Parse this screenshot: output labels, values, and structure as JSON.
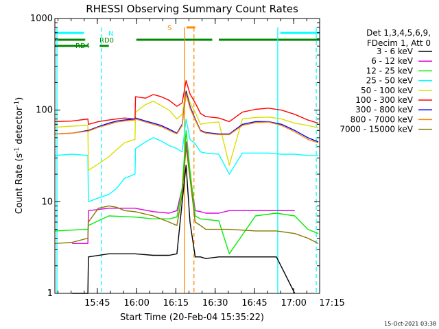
{
  "chart_data": {
    "type": "line",
    "title": "RHESSI Observing Summary Count Rates",
    "xlabel": "Start Time (20-Feb-04 15:35:22)",
    "ylabel": "Count Rate (s",
    "ylabel_sup1": "-1",
    "ylabel_mid": " detector",
    "ylabel_sup2": "-1",
    "ylabel_end": ")",
    "y_scale": "log",
    "ylim": [
      1,
      1000
    ],
    "xlim_minutes": [
      -6.6,
      94.5
    ],
    "x_ticks": [
      {
        "minute": 9.6,
        "label": "15:45"
      },
      {
        "minute": 24.6,
        "label": "16:00"
      },
      {
        "minute": 39.6,
        "label": "16:15"
      },
      {
        "minute": 54.6,
        "label": "16:30"
      },
      {
        "minute": 69.6,
        "label": "16:45"
      },
      {
        "minute": 84.6,
        "label": "17:00"
      },
      {
        "minute": 99.6,
        "label": "17:15"
      }
    ],
    "y_ticks": [
      {
        "value": 1,
        "label": "1"
      },
      {
        "value": 10,
        "label": "10"
      },
      {
        "value": 100,
        "label": "100"
      },
      {
        "value": 1000,
        "label": "1000"
      }
    ],
    "legend": {
      "placement": "right",
      "header": [
        "Det 1,3,4,5,6,9,",
        "FDecim 1, Att 0"
      ]
    },
    "series": [
      {
        "name": "3 - 6 keV",
        "color": "#000000",
        "x": [
          0,
          6,
          6.2,
          14,
          24,
          31,
          37,
          40,
          42,
          43.5,
          45,
          47,
          49,
          51,
          56,
          60,
          70,
          78,
          85
        ],
        "y": [
          1,
          1,
          2.5,
          2.7,
          2.7,
          2.6,
          2.6,
          2.7,
          10,
          25,
          6,
          2.5,
          2.5,
          2.4,
          2.5,
          2.5,
          2.5,
          2.5,
          1
        ]
      },
      {
        "name": "6 - 12 keV",
        "color": "#dd00dd",
        "x": [
          0,
          6,
          6.2,
          14,
          24,
          31,
          37,
          40,
          42,
          43.5,
          45,
          47,
          49,
          51,
          56,
          60,
          70,
          78,
          85
        ],
        "y": [
          3.5,
          3.5,
          8,
          8.5,
          8.5,
          7.8,
          7.5,
          8,
          14,
          45,
          20,
          8,
          7.8,
          7.5,
          7.5,
          8,
          8,
          8,
          8
        ]
      },
      {
        "name": "12 - 25 keV",
        "color": "#00ee00",
        "x": [
          -6.5,
          6,
          6.2,
          14,
          24,
          31,
          37,
          40,
          42,
          43.5,
          45,
          47,
          49,
          51,
          56,
          60,
          70,
          78,
          85,
          90,
          94
        ],
        "y": [
          4.8,
          5,
          5.5,
          7,
          6.8,
          6.5,
          6.5,
          6.8,
          14,
          60,
          22,
          7,
          6.5,
          6.4,
          6.2,
          2.7,
          7,
          7.5,
          7,
          5,
          4.5
        ]
      },
      {
        "name": "25 - 50 keV",
        "color": "#00ffff",
        "x": [
          -6.5,
          0,
          6,
          6.2,
          10,
          14,
          17,
          20,
          24,
          24.2,
          28,
          31,
          34,
          37,
          40,
          42,
          43.5,
          45,
          47,
          49,
          51,
          56,
          60,
          65,
          70,
          75,
          80,
          85,
          90,
          94
        ],
        "y": [
          32,
          33,
          32,
          10,
          11,
          12,
          14,
          18,
          20,
          38,
          45,
          50,
          46,
          41,
          38,
          35,
          80,
          48,
          43,
          35,
          34,
          33,
          20,
          34,
          34,
          34,
          33,
          33,
          32,
          32
        ]
      },
      {
        "name": "50 - 100 keV",
        "color": "#dddd00",
        "x": [
          -6.5,
          0,
          6,
          6.2,
          10,
          14,
          17,
          20,
          24,
          24.2,
          28,
          31,
          34,
          37,
          40,
          42,
          43.5,
          45,
          47,
          49,
          51,
          56,
          60,
          65,
          70,
          75,
          80,
          85,
          90,
          94
        ],
        "y": [
          65,
          67,
          68,
          22,
          26,
          31,
          37,
          44,
          48,
          95,
          115,
          125,
          112,
          100,
          80,
          90,
          165,
          120,
          95,
          70,
          72,
          74,
          25,
          80,
          83,
          84,
          80,
          72,
          68,
          64
        ]
      },
      {
        "name": "100 - 300 keV",
        "color": "#ff0000",
        "x": [
          -6.5,
          0,
          6,
          6.2,
          10,
          14,
          17,
          20,
          24,
          24.2,
          28,
          31,
          34,
          37,
          40,
          42,
          43.5,
          45,
          47,
          49,
          51,
          56,
          60,
          65,
          70,
          75,
          80,
          85,
          90,
          94
        ],
        "y": [
          75,
          76,
          80,
          70,
          75,
          78,
          80,
          82,
          80,
          140,
          135,
          148,
          140,
          128,
          110,
          120,
          210,
          150,
          120,
          92,
          85,
          82,
          75,
          95,
          102,
          105,
          100,
          90,
          78,
          72
        ]
      },
      {
        "name": "300 - 800 keV",
        "color": "#0000ff",
        "x": [
          -6.5,
          0,
          6,
          6.2,
          10,
          14,
          17,
          20,
          24,
          24.2,
          28,
          31,
          34,
          37,
          40,
          42,
          43.5,
          45,
          47,
          49,
          51,
          56,
          60,
          65,
          70,
          75,
          80,
          85,
          90,
          94
        ],
        "y": [
          55,
          56,
          60,
          60,
          66,
          72,
          76,
          78,
          80,
          82,
          76,
          72,
          68,
          62,
          56,
          70,
          160,
          110,
          80,
          60,
          57,
          55,
          55,
          70,
          75,
          75,
          70,
          60,
          50,
          45
        ]
      },
      {
        "name": "800 - 7000 keV",
        "color": "#ff8800",
        "x": [
          -6.5,
          0,
          6,
          6.2,
          10,
          14,
          17,
          20,
          24,
          24.2,
          28,
          31,
          34,
          37,
          40,
          42,
          43.5,
          45,
          47,
          49,
          51,
          56,
          60,
          65,
          70,
          75,
          80,
          85,
          90,
          94
        ],
        "y": [
          55,
          56,
          59,
          59,
          65,
          70,
          74,
          76,
          78,
          80,
          74,
          70,
          66,
          60,
          55,
          68,
          150,
          105,
          78,
          59,
          56,
          54,
          54,
          68,
          73,
          74,
          68,
          58,
          48,
          44
        ]
      },
      {
        "name": "7000 - 15000 keV",
        "color": "#887700",
        "x": [
          -6.5,
          0,
          6,
          6.2,
          10,
          14,
          17,
          20,
          24,
          31,
          37,
          40,
          42,
          43.5,
          45,
          47,
          49,
          51,
          56,
          60,
          70,
          78,
          85,
          90,
          94
        ],
        "y": [
          3.5,
          3.6,
          4,
          6,
          8.5,
          9,
          8.7,
          8,
          7.8,
          7,
          6,
          5.5,
          12,
          40,
          18,
          6,
          5.5,
          5,
          5,
          5,
          4.8,
          4.8,
          4.5,
          4,
          3.5
        ]
      }
    ],
    "annotations": {
      "bars": [
        {
          "label": "N",
          "color": "#00ffff",
          "segments": [
            [
              -6.6,
              4.5
            ],
            [
              79.5,
              94.5
            ]
          ]
        },
        {
          "label": "RD0",
          "color": "#008800",
          "segments": [
            [
              -6.6,
              4.5
            ],
            [
              4.5,
              5
            ],
            [
              24.5,
              53.5
            ],
            [
              56,
              94.5
            ]
          ]
        },
        {
          "label": "RD4",
          "color": "#008800",
          "segments": [
            [
              -6.6,
              6
            ],
            [
              10.5,
              14
            ]
          ]
        },
        {
          "label": "S",
          "color": "#ff8800",
          "segments": [
            [
              43.7,
              47
            ]
          ]
        }
      ],
      "vlines": [
        {
          "minute": -5.8,
          "color": "#00ffff",
          "style": "solid"
        },
        {
          "minute": 11.2,
          "color": "#00ffff",
          "style": "dashed"
        },
        {
          "minute": 78.5,
          "color": "#00ffff",
          "style": "solid"
        },
        {
          "minute": 93.2,
          "color": "#00ffff",
          "style": "dashed"
        },
        {
          "minute": 42.9,
          "color": "#ff8800",
          "style": "solid"
        },
        {
          "minute": 46.5,
          "color": "#ff8800",
          "style": "dashed"
        }
      ]
    },
    "grid": false
  },
  "footer": {
    "timestamp": "15-Oct-2021 03:38"
  }
}
